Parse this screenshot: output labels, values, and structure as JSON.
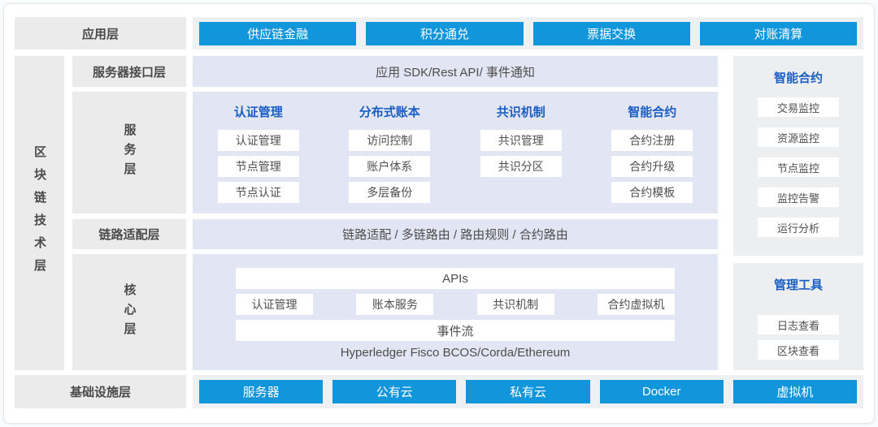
{
  "app_layer": {
    "label": "应用层",
    "nodes": [
      "供应链金融",
      "积分通兑",
      "票据交换",
      "对账清算"
    ]
  },
  "tech_layer": {
    "label": "区块链技术层",
    "interface": {
      "label": "服务器接口层",
      "band": "应用 SDK/Rest API/ 事件通知"
    },
    "service": {
      "label": "服务层",
      "columns": [
        {
          "header": "认证管理",
          "items": [
            "认证管理",
            "节点管理",
            "节点认证"
          ]
        },
        {
          "header": "分布式账本",
          "items": [
            "访问控制",
            "账户体系",
            "多层备份"
          ]
        },
        {
          "header": "共识机制",
          "items": [
            "共识管理",
            "共识分区"
          ]
        },
        {
          "header": "智能合约",
          "items": [
            "合约注册",
            "合约升级",
            "合约模板"
          ]
        }
      ]
    },
    "link": {
      "label": "链路适配层",
      "band": "链路适配 / 多链路由 / 路由规则 / 合约路由"
    },
    "core": {
      "label": "核心层",
      "apis_bar": "APIs",
      "modules": [
        "认证管理",
        "账本服务",
        "共识机制",
        "合约虚拟机"
      ],
      "event_bar": "事件流",
      "platforms": "Hyperledger Fisco BCOS/Corda/Ethereum"
    }
  },
  "sidebar": {
    "monitor": {
      "header": "智能合约",
      "items": [
        "交易监控",
        "资源监控",
        "节点监控",
        "监控告警",
        "运行分析"
      ]
    },
    "tools": {
      "header": "管理工具",
      "items": [
        "日志查看",
        "区块查看"
      ]
    }
  },
  "infra_layer": {
    "label": "基础设施层",
    "nodes": [
      "服务器",
      "公有云",
      "私有云",
      "Docker",
      "虚拟机"
    ]
  },
  "colors": {
    "node_blue": "#1296db",
    "header_blue": "#1a5ec4",
    "panel_lavender": "#e2e5f3",
    "label_gray": "#ebebeb",
    "sidebar_gray": "#edeef0"
  }
}
